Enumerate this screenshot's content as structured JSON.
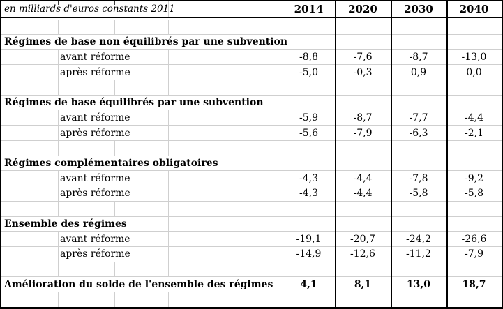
{
  "table": {
    "unit_label": "en milliards d'euros constants 2011",
    "years": [
      "2014",
      "2020",
      "2030",
      "2040"
    ],
    "rows": [
      {
        "kind": "blank",
        "label": "",
        "values": [
          "",
          "",
          "",
          ""
        ]
      },
      {
        "kind": "title",
        "label": "Régimes de base non équilibrés par une subvention",
        "values": [
          "",
          "",
          "",
          ""
        ]
      },
      {
        "kind": "detail",
        "label": "avant réforme",
        "values": [
          "-8,8",
          "-7,6",
          "-8,7",
          "-13,0"
        ]
      },
      {
        "kind": "detail",
        "label": "après réforme",
        "values": [
          "-5,0",
          "-0,3",
          "0,9",
          "0,0"
        ]
      },
      {
        "kind": "blank",
        "label": "",
        "values": [
          "",
          "",
          "",
          ""
        ]
      },
      {
        "kind": "title",
        "label": "Régimes de base équilibrés par une subvention",
        "values": [
          "",
          "",
          "",
          ""
        ]
      },
      {
        "kind": "detail",
        "label": "avant réforme",
        "values": [
          "-5,9",
          "-8,7",
          "-7,7",
          "-4,4"
        ]
      },
      {
        "kind": "detail",
        "label": "après réforme",
        "values": [
          "-5,6",
          "-7,9",
          "-6,3",
          "-2,1"
        ]
      },
      {
        "kind": "blank",
        "label": "",
        "values": [
          "",
          "",
          "",
          ""
        ]
      },
      {
        "kind": "title",
        "label": "Régimes complémentaires obligatoires",
        "values": [
          "",
          "",
          "",
          ""
        ]
      },
      {
        "kind": "detail",
        "label": "avant réforme",
        "values": [
          "-4,3",
          "-4,4",
          "-7,8",
          "-9,2"
        ]
      },
      {
        "kind": "detail",
        "label": "après réforme",
        "values": [
          "-4,3",
          "-4,4",
          "-5,8",
          "-5,8"
        ]
      },
      {
        "kind": "blank",
        "label": "",
        "values": [
          "",
          "",
          "",
          ""
        ]
      },
      {
        "kind": "title",
        "label": "Ensemble des régimes",
        "values": [
          "",
          "",
          "",
          ""
        ]
      },
      {
        "kind": "detail",
        "label": "avant réforme",
        "values": [
          "-19,1",
          "-20,7",
          "-24,2",
          "-26,6"
        ]
      },
      {
        "kind": "detail",
        "label": "après réforme",
        "values": [
          "-14,9",
          "-12,6",
          "-11,2",
          "-7,9"
        ]
      },
      {
        "kind": "blank",
        "label": "",
        "values": [
          "",
          "",
          "",
          ""
        ]
      },
      {
        "kind": "total",
        "label": "Amélioration du solde de l'ensemble des régimes",
        "values": [
          "4,1",
          "8,1",
          "13,0",
          "18,7"
        ]
      },
      {
        "kind": "blank",
        "label": "",
        "values": [
          "",
          "",
          "",
          ""
        ]
      }
    ]
  }
}
